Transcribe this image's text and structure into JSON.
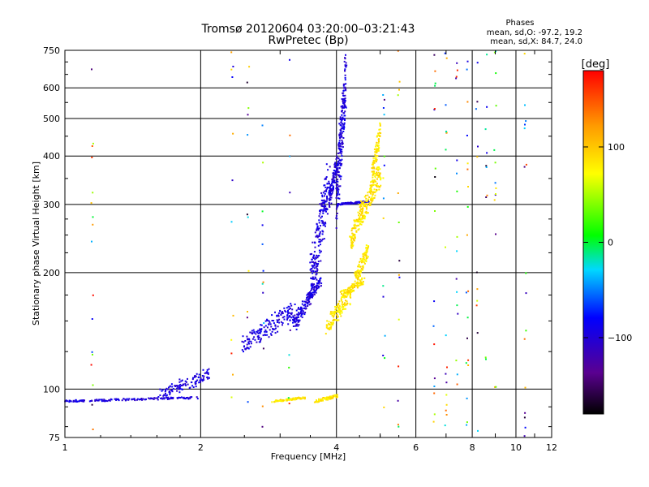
{
  "chart_data": {
    "type": "scatter",
    "title": "Tromsø 20120604 03:20:00–03:21:43",
    "subtitle": "RwPretec (Bp)",
    "xlabel": "Frequency [MHz]",
    "ylabel": "Stationary phase Virtual Height [km]",
    "x_scale": "log",
    "y_scale": "log",
    "xlim": [
      1,
      12
    ],
    "ylim": [
      75,
      750
    ],
    "x_ticks": [
      1,
      2,
      4,
      6,
      8,
      10,
      12
    ],
    "y_ticks": [
      75,
      100,
      200,
      300,
      400,
      500,
      600,
      750
    ],
    "grid": true,
    "phases_box": {
      "title": "Phases",
      "line1": "mean, sd,O: -97.2, 19.2",
      "line2": "mean, sd,X:  84.7, 24.0"
    },
    "colorbar": {
      "label": "[deg]",
      "range": [
        -180,
        180
      ],
      "ticks": [
        -100,
        0,
        100
      ],
      "colormap": "rainbow (black - purple - blue - cyan - green - yellow - orange - red)"
    },
    "series": [
      {
        "name": "O",
        "typical_phase_deg": -97.2,
        "segments": [
          {
            "x": [
              1.0,
              1.9
            ],
            "y": [
              93,
              95
            ]
          },
          {
            "x": [
              1.6,
              2.1
            ],
            "y": [
              96,
              110
            ]
          },
          {
            "x": [
              2.5,
              3.2
            ],
            "y": [
              130,
              160
            ]
          },
          {
            "x": [
              3.2,
              3.5
            ],
            "y": [
              145,
              175
            ]
          },
          {
            "x": [
              3.45,
              3.7
            ],
            "y": [
              170,
              190
            ]
          },
          {
            "x": [
              3.5,
              3.85
            ],
            "y": [
              185,
              340
            ]
          },
          {
            "x": [
              3.85,
              4.0
            ],
            "y": [
              300,
              380
            ]
          },
          {
            "x": [
              4.0,
              4.2
            ],
            "y": [
              310,
              640
            ]
          },
          {
            "x": [
              4.0,
              4.7
            ],
            "y": [
              300,
              305
            ]
          }
        ]
      },
      {
        "name": "X",
        "typical_phase_deg": 84.7,
        "segments": [
          {
            "x": [
              2.9,
              3.4
            ],
            "y": [
              93,
              95
            ]
          },
          {
            "x": [
              3.6,
              4.0
            ],
            "y": [
              93,
              96
            ]
          },
          {
            "x": [
              3.8,
              4.3
            ],
            "y": [
              145,
              175
            ]
          },
          {
            "x": [
              4.1,
              4.6
            ],
            "y": [
              175,
              190
            ]
          },
          {
            "x": [
              4.4,
              4.7
            ],
            "y": [
              190,
              230
            ]
          },
          {
            "x": [
              4.3,
              4.6
            ],
            "y": [
              240,
              300
            ]
          },
          {
            "x": [
              4.55,
              5.0
            ],
            "y": [
              280,
              360
            ]
          },
          {
            "x": [
              4.8,
              5.0
            ],
            "y": [
              360,
              460
            ]
          }
        ]
      }
    ],
    "noise": {
      "columns_mhz": [
        1.15,
        2.35,
        2.55,
        2.75,
        3.15,
        5.1,
        5.5,
        6.6,
        7.0,
        7.4,
        7.8,
        8.2,
        8.6,
        9.0,
        10.5
      ],
      "note": "sparse multicolour points at fixed frequencies across all heights"
    }
  }
}
